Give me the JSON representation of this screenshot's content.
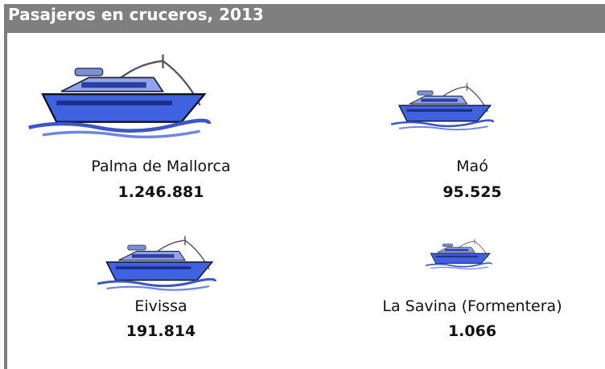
{
  "header": {
    "title": "Pasajeros en cruceros, 2013"
  },
  "items": [
    {
      "name": "Palma de Mallorca",
      "value": "1.246.881"
    },
    {
      "name": "Maó",
      "value": "95.525"
    },
    {
      "name": "Eivissa",
      "value": "191.814"
    },
    {
      "name": "La Savina (Formentera)",
      "value": "1.066"
    }
  ]
}
